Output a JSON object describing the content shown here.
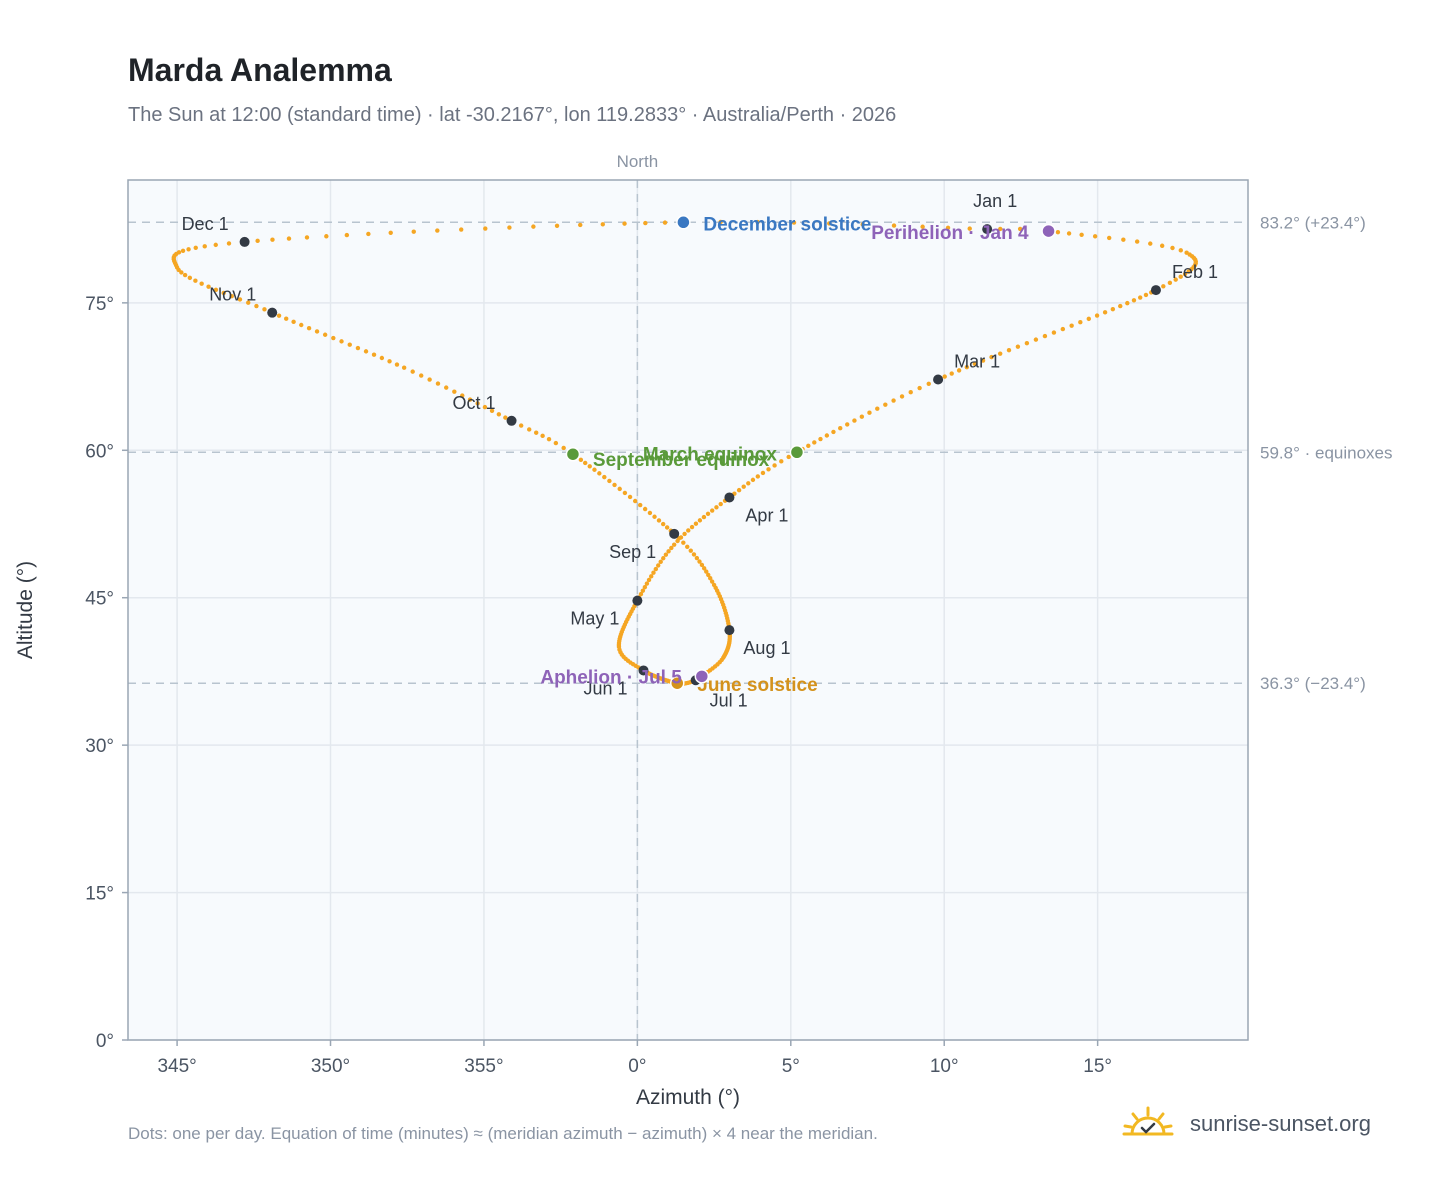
{
  "page": {
    "title": "Marda Analemma",
    "subtitle": "The Sun at 12:00 (standard time) · lat -30.2167°, lon 119.2833° · Australia/Perth · 2026",
    "footnote": "Dots: one per day. Equation of time (minutes) ≈ (meridian azimuth − azimuth) × 4 near the meridian.",
    "brand": "sunrise-sunset.org",
    "brand_icon": "sun-logo-icon"
  },
  "colors": {
    "curve": "#f5a623",
    "month_dot": "#333a44",
    "solstice_dec": "#3a78c2",
    "solstice_jun": "#d4921c",
    "equinox": "#5a9a3a",
    "apsis": "#8e63b8",
    "plot_bg": "#f7fafd",
    "grid": "#e3e8ee",
    "refline": "#b8c4cf",
    "axis_border": "#9aa6b4"
  },
  "chart_data": {
    "type": "scatter",
    "xlabel": "Azimuth (°)",
    "ylabel": "Altitude (°)",
    "xlim": [
      343.4,
      19.9
    ],
    "ylim": [
      0,
      87.5
    ],
    "x_ticks": [
      "345°",
      "350°",
      "355°",
      "0°",
      "5°",
      "10°",
      "15°"
    ],
    "x_tick_values": [
      345,
      350,
      355,
      0,
      5,
      10,
      15
    ],
    "y_ticks": [
      "0°",
      "15°",
      "30°",
      "45°",
      "60°",
      "75°"
    ],
    "y_tick_values": [
      0,
      15,
      30,
      45,
      60,
      75
    ],
    "grid": true,
    "meridian_label": "North",
    "reference_lines": [
      {
        "altitude": 83.2,
        "label": "83.2° (+23.4°)"
      },
      {
        "altitude": 59.8,
        "label": "59.8° · equinoxes"
      },
      {
        "altitude": 36.3,
        "label": "36.3° (−23.4°)"
      }
    ],
    "month_markers": [
      {
        "label": "Jan 1",
        "azimuth": 11.4,
        "altitude": 82.5
      },
      {
        "label": "Feb 1",
        "azimuth": 16.9,
        "altitude": 76.3
      },
      {
        "label": "Mar 1",
        "azimuth": 9.8,
        "altitude": 67.2
      },
      {
        "label": "Apr 1",
        "azimuth": 3.0,
        "altitude": 55.2
      },
      {
        "label": "May 1",
        "azimuth": 0.0,
        "altitude": 44.7
      },
      {
        "label": "Jun 1",
        "azimuth": 0.2,
        "altitude": 37.6
      },
      {
        "label": "Jul 1",
        "azimuth": 1.9,
        "altitude": 36.6
      },
      {
        "label": "Aug 1",
        "azimuth": 3.0,
        "altitude": 41.7
      },
      {
        "label": "Sep 1",
        "azimuth": 1.2,
        "altitude": 51.5
      },
      {
        "label": "Oct 1",
        "azimuth": 355.9,
        "altitude": 63.0
      },
      {
        "label": "Nov 1",
        "azimuth": 348.1,
        "altitude": 74.0
      },
      {
        "label": "Dec 1",
        "azimuth": 347.2,
        "altitude": 81.2
      }
    ],
    "events": [
      {
        "label": "December solstice",
        "azimuth": 1.5,
        "altitude": 83.2,
        "color": "#3a78c2"
      },
      {
        "label": "Perihelion · Jan 4",
        "azimuth": 13.4,
        "altitude": 82.3,
        "color": "#8e63b8"
      },
      {
        "label": "March equinox",
        "azimuth": 5.2,
        "altitude": 59.8,
        "color": "#5a9a3a"
      },
      {
        "label": "September equinox",
        "azimuth": 357.9,
        "altitude": 59.6,
        "color": "#5a9a3a"
      },
      {
        "label": "June solstice",
        "azimuth": 1.3,
        "altitude": 36.3,
        "color": "#d4921c"
      },
      {
        "label": "Aphelion · Jul 5",
        "azimuth": 2.1,
        "altitude": 37.0,
        "color": "#8e63b8"
      }
    ],
    "series": [
      {
        "points_per": "day",
        "anchors": [
          [
            1,
            11.4,
            82.5
          ],
          [
            4,
            13.4,
            82.3
          ],
          [
            16,
            17.9,
            80.1
          ],
          [
            32,
            16.9,
            76.3
          ],
          [
            60,
            9.8,
            67.2
          ],
          [
            79,
            5.2,
            59.8
          ],
          [
            91,
            3.0,
            55.2
          ],
          [
            105,
            1.2,
            50.4
          ],
          [
            121,
            0.0,
            44.7
          ],
          [
            140,
            -0.6,
            40.0
          ],
          [
            152,
            0.2,
            37.6
          ],
          [
            172,
            1.3,
            36.3
          ],
          [
            182,
            1.9,
            36.6
          ],
          [
            186,
            2.1,
            37.0
          ],
          [
            196,
            2.8,
            38.9
          ],
          [
            213,
            3.0,
            41.7
          ],
          [
            230,
            2.5,
            46.3
          ],
          [
            244,
            1.2,
            51.5
          ],
          [
            266,
            -2.1,
            59.6
          ],
          [
            274,
            -4.1,
            63.0
          ],
          [
            288,
            -7.6,
            68.4
          ],
          [
            305,
            -11.9,
            74.0
          ],
          [
            320,
            -15.0,
            78.6
          ],
          [
            335,
            -12.8,
            81.2
          ],
          [
            356,
            1.5,
            83.2
          ],
          [
            366,
            11.4,
            82.5
          ]
        ]
      }
    ]
  }
}
